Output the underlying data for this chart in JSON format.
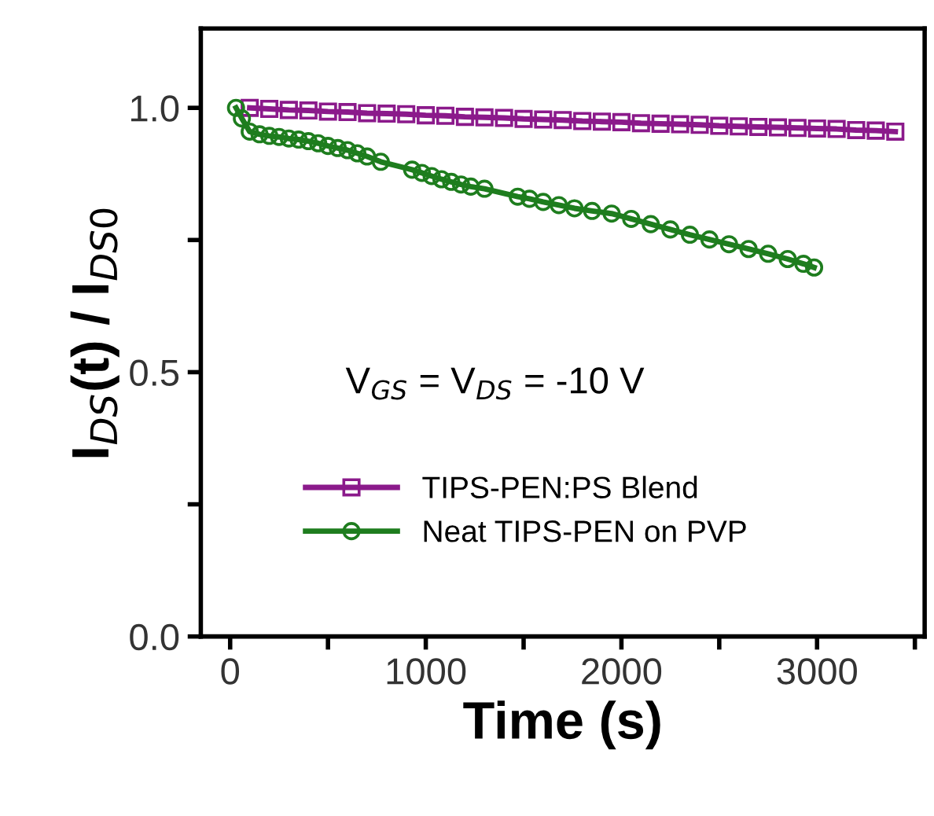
{
  "chart_data": {
    "type": "line",
    "xlabel": "Time (s)",
    "ylabel": "I$_{DS}$(t) / I$_{DS0}$",
    "annotations": [
      "V$_{GS}$ = V$_{DS}$ = -10 V"
    ],
    "xlim": [
      -150,
      3550
    ],
    "ylim": [
      0,
      1.15
    ],
    "xticks": [
      0,
      {
        "value": 500,
        "label": null
      },
      1000,
      {
        "value": 1500,
        "label": null
      },
      2000,
      {
        "value": 2500,
        "label": null
      },
      3000,
      {
        "value": 3500,
        "label": null
      }
    ],
    "yticks": [
      {
        "value": 0,
        "label": "0.0"
      },
      {
        "value": 0.25,
        "label": null
      },
      0.5,
      {
        "value": 0.75,
        "label": null
      },
      {
        "value": 1.0,
        "label": "1.0"
      }
    ],
    "grid": false,
    "legend": "bottom",
    "line_style": "solid",
    "series": [
      {
        "name": "TIPS-PEN:PS Blend",
        "color": "#8b1a8b",
        "marker": "square",
        "x": [
          100,
          200,
          300,
          400,
          500,
          600,
          700,
          800,
          900,
          1000,
          1100,
          1200,
          1300,
          1400,
          1500,
          1600,
          1700,
          1800,
          1900,
          2000,
          2100,
          2200,
          2300,
          2400,
          2500,
          2600,
          2700,
          2800,
          2900,
          3000,
          3100,
          3200,
          3300,
          3400
        ],
        "values": [
          1.0,
          0.998,
          0.996,
          0.995,
          0.993,
          0.992,
          0.99,
          0.989,
          0.988,
          0.986,
          0.985,
          0.983,
          0.982,
          0.981,
          0.979,
          0.978,
          0.977,
          0.975,
          0.974,
          0.973,
          0.971,
          0.97,
          0.969,
          0.968,
          0.966,
          0.965,
          0.964,
          0.963,
          0.962,
          0.961,
          0.96,
          0.958,
          0.957,
          0.955
        ]
      },
      {
        "name": "Neat TIPS-PEN on PVP",
        "color": "#1e7d1e",
        "marker": "circle",
        "x": [
          30,
          60,
          100,
          150,
          200,
          250,
          300,
          350,
          400,
          450,
          500,
          550,
          600,
          650,
          700,
          770,
          930,
          980,
          1030,
          1080,
          1130,
          1180,
          1230,
          1300,
          1470,
          1530,
          1600,
          1680,
          1760,
          1850,
          1950,
          2050,
          2150,
          2250,
          2350,
          2450,
          2550,
          2650,
          2750,
          2850,
          2930,
          2985
        ],
        "values": [
          1.0,
          0.98,
          0.955,
          0.95,
          0.947,
          0.945,
          0.942,
          0.94,
          0.937,
          0.933,
          0.928,
          0.924,
          0.92,
          0.914,
          0.908,
          0.898,
          0.883,
          0.877,
          0.871,
          0.865,
          0.86,
          0.855,
          0.851,
          0.847,
          0.832,
          0.828,
          0.822,
          0.816,
          0.81,
          0.805,
          0.8,
          0.79,
          0.78,
          0.77,
          0.76,
          0.751,
          0.742,
          0.733,
          0.724,
          0.714,
          0.705,
          0.698
        ]
      }
    ]
  }
}
